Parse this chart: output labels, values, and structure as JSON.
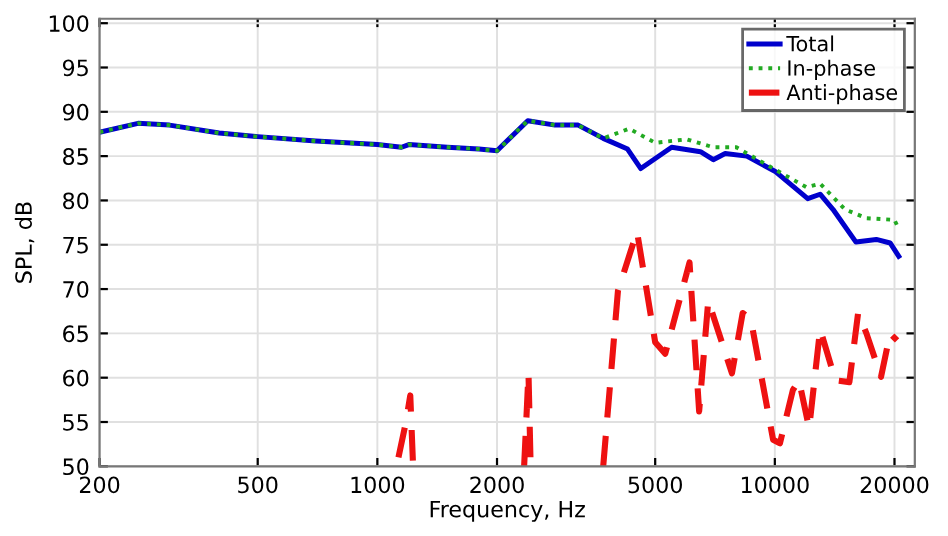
{
  "chart_data": {
    "type": "line",
    "xlabel": "Frequency, Hz",
    "ylabel": "SPL, dB",
    "xlim": [
      200,
      22500
    ],
    "ylim": [
      50,
      100.5
    ],
    "log": "x",
    "xticks": [
      200,
      500,
      1000,
      2000,
      5000,
      10000,
      20000
    ],
    "yticks": [
      50,
      55,
      60,
      65,
      70,
      75,
      80,
      85,
      90,
      95,
      100
    ],
    "grid": true,
    "legend": "top right",
    "series": [
      {
        "name": "Total",
        "color": "#0000cc",
        "line_style": "solid",
        "x": [
          200,
          250,
          300,
          400,
          500,
          700,
          1000,
          1150,
          1200,
          1500,
          1800,
          2000,
          2390,
          2800,
          3200,
          3700,
          4260,
          4600,
          5500,
          6500,
          7000,
          7500,
          8500,
          10000,
          12100,
          13000,
          14000,
          16000,
          18000,
          19500,
          20500
        ],
        "values": [
          87.7,
          88.7,
          88.5,
          87.6,
          87.2,
          86.7,
          86.3,
          86.0,
          86.3,
          86.0,
          85.8,
          85.6,
          89.0,
          88.5,
          88.5,
          87.0,
          85.8,
          83.6,
          86.0,
          85.5,
          84.6,
          85.3,
          85.0,
          83.3,
          80.2,
          80.7,
          79.0,
          75.3,
          75.6,
          75.2,
          73.7
        ]
      },
      {
        "name": "In-phase",
        "color": "#22aa22",
        "line_style": "dotted",
        "x": [
          200,
          250,
          300,
          400,
          500,
          700,
          1000,
          1150,
          1200,
          1500,
          1800,
          2000,
          2390,
          2800,
          3200,
          3700,
          4300,
          5000,
          6000,
          7000,
          8000,
          10000,
          12000,
          13000,
          15000,
          17000,
          20000,
          20500
        ],
        "values": [
          87.7,
          88.7,
          88.5,
          87.6,
          87.2,
          86.7,
          86.3,
          86.0,
          86.3,
          86.0,
          85.8,
          85.6,
          89.0,
          88.5,
          88.5,
          87.0,
          88.1,
          86.5,
          86.9,
          86.0,
          86.0,
          83.5,
          81.5,
          81.9,
          79.0,
          78.0,
          77.8,
          76.8
        ]
      },
      {
        "name": "Anti-phase",
        "color": "#ee1111",
        "line_style": "dashed",
        "x": [
          1130,
          1180,
          1210,
          1230,
          1500,
          2340,
          2380,
          2400,
          2430,
          3000,
          3700,
          4030,
          4500,
          5000,
          5300,
          6100,
          6450,
          6800,
          7800,
          8300,
          8700,
          9900,
          10300,
          11100,
          11500,
          12200,
          13000,
          14200,
          15400,
          16200,
          17000,
          18500,
          19500,
          20300
        ],
        "values": [
          51,
          55,
          58,
          50,
          null,
          50,
          57,
          60.5,
          50,
          null,
          50,
          69.8,
          76.5,
          64,
          62.7,
          73,
          56.2,
          68.7,
          60.5,
          67.3,
          66.6,
          53,
          52.6,
          58.6,
          59.7,
          54.3,
          65.5,
          59.7,
          59.5,
          67.3,
          65,
          60.1,
          65,
          64.2
        ]
      }
    ]
  }
}
